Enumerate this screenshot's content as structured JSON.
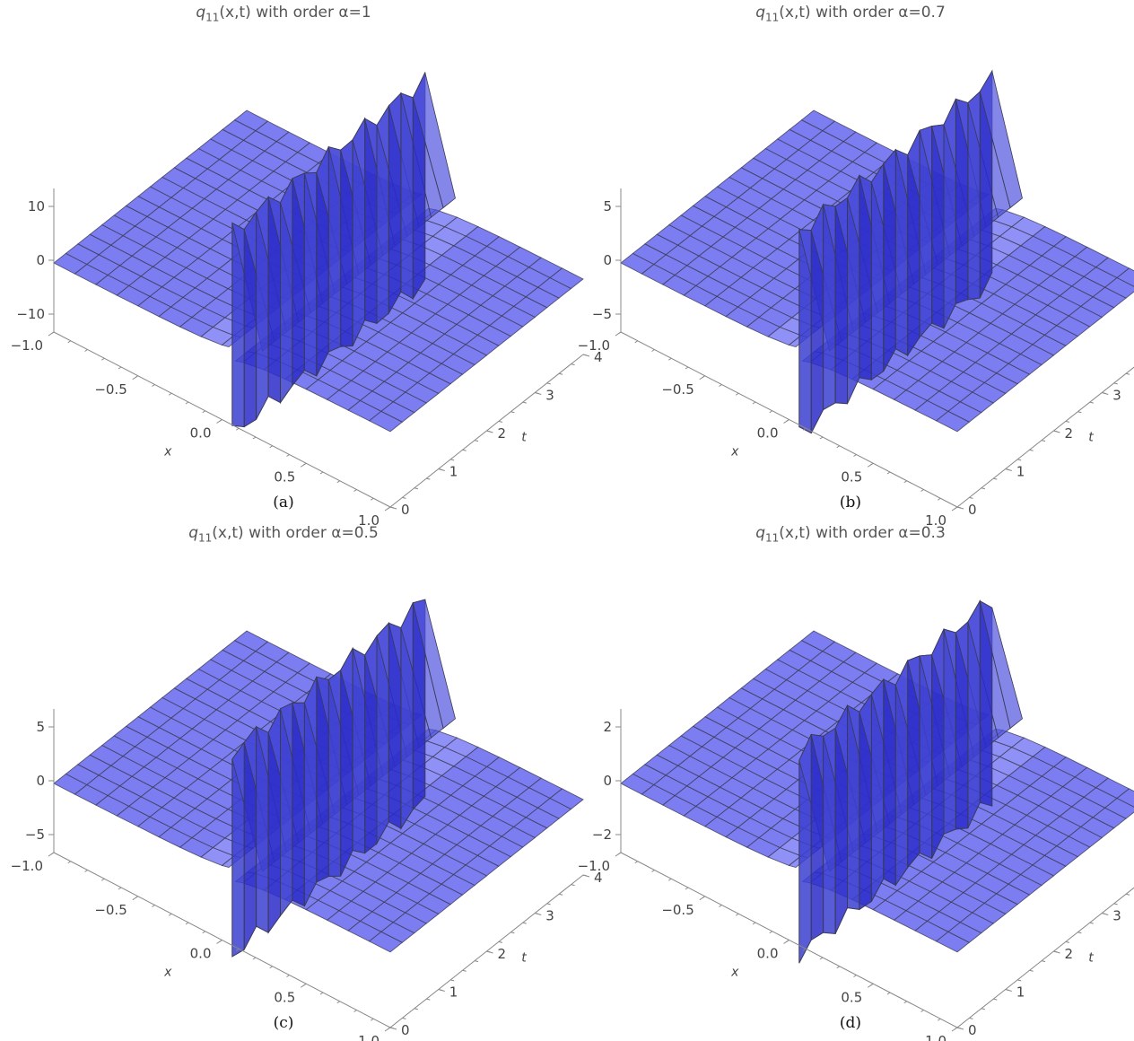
{
  "panels": [
    {
      "title_prefix": "q",
      "title_subscript": "11",
      "title_rest": "(x,t) with order α=1",
      "caption": "(a)",
      "zticks": [
        "10",
        "0",
        "−10"
      ]
    },
    {
      "title_prefix": "q",
      "title_subscript": "11",
      "title_rest": "(x,t) with order α=0.7",
      "caption": "(b)",
      "zticks": [
        "5",
        "0",
        "−5"
      ]
    },
    {
      "title_prefix": "q",
      "title_subscript": "11",
      "title_rest": "(x,t) with order α=0.5",
      "caption": "(c)",
      "zticks": [
        "5",
        "0",
        "−5"
      ]
    },
    {
      "title_prefix": "q",
      "title_subscript": "11",
      "title_rest": "(x,t) with order α=0.3",
      "caption": "(d)",
      "zticks": [
        "2",
        "0",
        "−2"
      ]
    }
  ],
  "xticks": [
    "−1.0",
    "−0.5",
    "0.0",
    "0.5",
    "1.0"
  ],
  "tticks": [
    "0",
    "1",
    "2",
    "3",
    "4"
  ],
  "xlabel": "x",
  "tlabel": "t",
  "colors": {
    "surface": "#7b7df0",
    "surface_dark": "#3c3fd0",
    "wall": "#2a2cc9",
    "mesh": "#3a3a55",
    "axis": "#888888"
  },
  "chart_data": [
    {
      "type": "surface",
      "title": "q11(x,t) with order α=1",
      "x_range": [
        -1.0,
        1.0
      ],
      "t_range": [
        0,
        4
      ],
      "z_ticks": [
        -10,
        0,
        10
      ],
      "alpha": 1
    },
    {
      "type": "surface",
      "title": "q11(x,t) with order α=0.7",
      "x_range": [
        -1.0,
        1.0
      ],
      "t_range": [
        0,
        4
      ],
      "z_ticks": [
        -5,
        0,
        5
      ],
      "alpha": 0.7
    },
    {
      "type": "surface",
      "title": "q11(x,t) with order α=0.5",
      "x_range": [
        -1.0,
        1.0
      ],
      "t_range": [
        0,
        4
      ],
      "z_ticks": [
        -5,
        0,
        5
      ],
      "alpha": 0.5
    },
    {
      "type": "surface",
      "title": "q11(x,t) with order α=0.3",
      "x_range": [
        -1.0,
        1.0
      ],
      "t_range": [
        0,
        4
      ],
      "z_ticks": [
        -2,
        0,
        2
      ],
      "alpha": 0.3
    }
  ]
}
